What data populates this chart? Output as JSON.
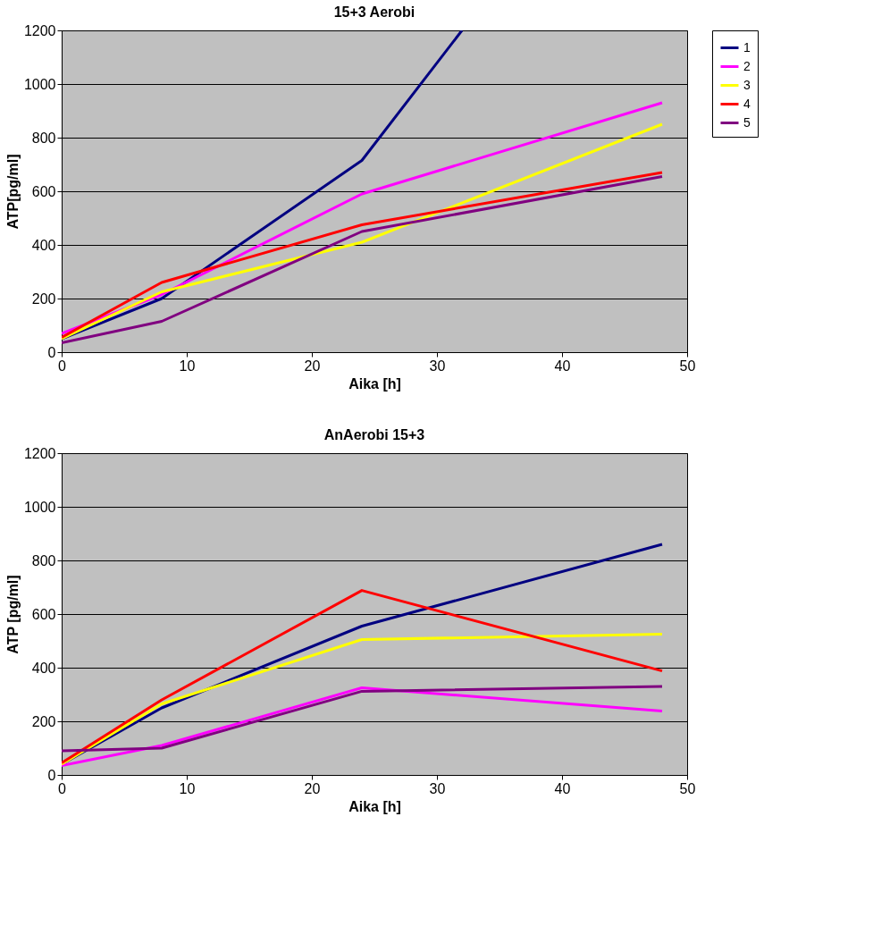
{
  "chart_data": [
    {
      "type": "line",
      "title": "15+3 Aerobi",
      "xlabel": "Aika [h]",
      "ylabel": "ATP[pg/ml]",
      "x": [
        0,
        8,
        24,
        48
      ],
      "xlim": [
        0,
        50
      ],
      "xticks": [
        0,
        10,
        20,
        30,
        40,
        50
      ],
      "ylim": [
        0,
        1200
      ],
      "yticks": [
        0,
        200,
        400,
        600,
        800,
        1000,
        1200
      ],
      "grid": "y",
      "legend": "right",
      "marker": "none",
      "line_style": "solid",
      "series": [
        {
          "name": "1",
          "color": "#000080",
          "x": [
            0,
            8,
            24,
            32
          ],
          "values": [
            50,
            200,
            715,
            1200
          ]
        },
        {
          "name": "2",
          "color": "#ff00ff",
          "values": [
            70,
            215,
            590,
            930
          ]
        },
        {
          "name": "3",
          "color": "#ffff00",
          "values": [
            50,
            225,
            410,
            850
          ]
        },
        {
          "name": "4",
          "color": "#ff0000",
          "values": [
            55,
            260,
            475,
            670
          ]
        },
        {
          "name": "5",
          "color": "#800080",
          "values": [
            35,
            115,
            450,
            655
          ]
        }
      ]
    },
    {
      "type": "line",
      "title": "AnAerobi 15+3",
      "xlabel": "Aika [h]",
      "ylabel": "ATP [pg/ml]",
      "x": [
        0,
        8,
        24,
        48
      ],
      "xlim": [
        0,
        50
      ],
      "xticks": [
        0,
        10,
        20,
        30,
        40,
        50
      ],
      "ylim": [
        0,
        1200
      ],
      "yticks": [
        0,
        200,
        400,
        600,
        800,
        1000,
        1200
      ],
      "grid": "y",
      "legend": "right",
      "marker": "none",
      "line_style": "solid",
      "series": [
        {
          "name": "1",
          "color": "#000080",
          "values": [
            40,
            250,
            555,
            860
          ]
        },
        {
          "name": "2",
          "color": "#ff00ff",
          "values": [
            35,
            110,
            325,
            238
          ]
        },
        {
          "name": "3",
          "color": "#ffff00",
          "values": [
            40,
            265,
            505,
            525
          ]
        },
        {
          "name": "4",
          "color": "#ff0000",
          "values": [
            45,
            280,
            688,
            388
          ]
        },
        {
          "name": "5",
          "color": "#800080",
          "values": [
            90,
            100,
            312,
            330
          ]
        }
      ]
    }
  ]
}
